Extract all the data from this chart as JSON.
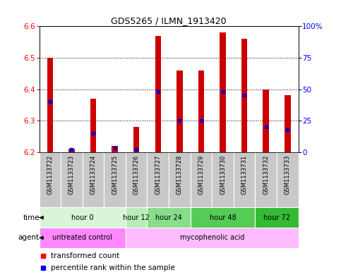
{
  "title": "GDS5265 / ILMN_1913420",
  "samples": [
    "GSM1133722",
    "GSM1133723",
    "GSM1133724",
    "GSM1133725",
    "GSM1133726",
    "GSM1133727",
    "GSM1133728",
    "GSM1133729",
    "GSM1133730",
    "GSM1133731",
    "GSM1133732",
    "GSM1133733"
  ],
  "transformed_count": [
    6.5,
    6.21,
    6.37,
    6.22,
    6.28,
    6.57,
    6.46,
    6.46,
    6.58,
    6.56,
    6.4,
    6.38
  ],
  "percentile_rank": [
    40,
    2,
    15,
    3,
    2,
    48,
    25,
    25,
    48,
    45,
    20,
    18
  ],
  "ymin": 6.2,
  "ymax": 6.6,
  "bar_color": "#cc0000",
  "dot_color": "#0000cc",
  "bar_width": 0.28,
  "time_groups": [
    {
      "label": "hour 0",
      "start": 0,
      "end": 3,
      "color": "#d9f5d9"
    },
    {
      "label": "hour 12",
      "start": 4,
      "end": 4,
      "color": "#b8edb8"
    },
    {
      "label": "hour 24",
      "start": 5,
      "end": 6,
      "color": "#88dd88"
    },
    {
      "label": "hour 48",
      "start": 7,
      "end": 9,
      "color": "#55cc55"
    },
    {
      "label": "hour 72",
      "start": 10,
      "end": 11,
      "color": "#33bb33"
    }
  ],
  "agent_groups": [
    {
      "label": "untreated control",
      "start": 0,
      "end": 3,
      "color": "#ff88ff"
    },
    {
      "label": "mycophenolic acid",
      "start": 4,
      "end": 11,
      "color": "#ffbbff"
    }
  ],
  "sample_box_color": "#c8c8c8",
  "right_ytick_pcts": [
    0,
    25,
    50,
    75,
    100
  ]
}
